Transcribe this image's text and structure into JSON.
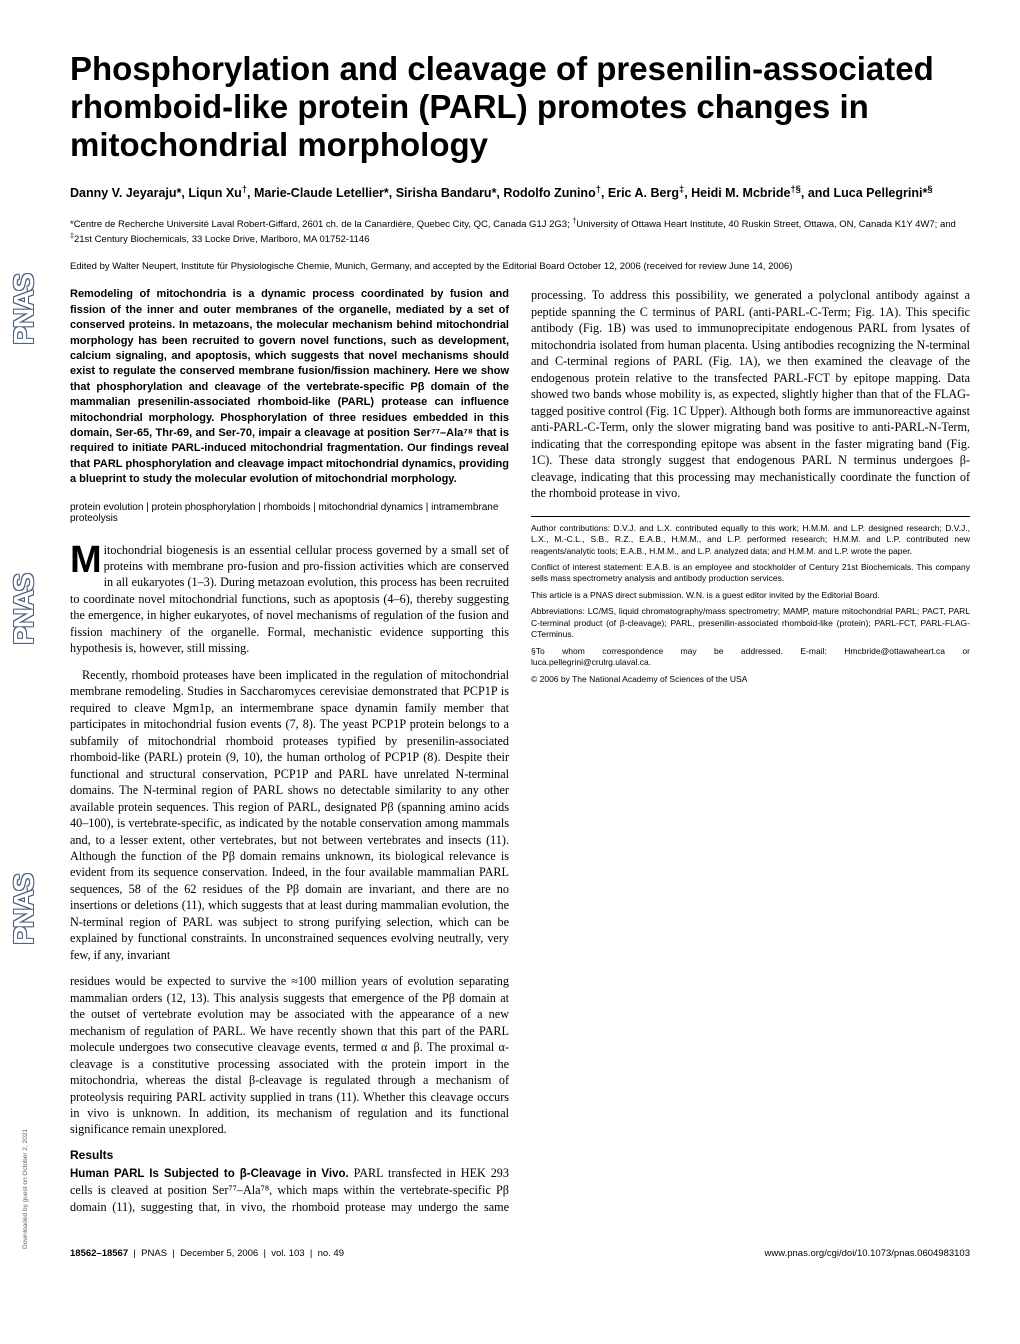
{
  "sidebar": {
    "logo": "PNAS"
  },
  "download_note": "Downloaded by guest on October 2, 2021",
  "title": "Phosphorylation and cleavage of presenilin-associated rhomboid-like protein (PARL) promotes changes in mitochondrial morphology",
  "authors_html": "Danny V. Jeyaraju*, Liqun Xu<sup>†</sup>, Marie-Claude Letellier*, Sirisha Bandaru*, Rodolfo Zunino<sup>†</sup>, Eric A. Berg<sup>‡</sup>, Heidi M. Mcbride<sup>†§</sup>, and Luca Pellegrini*<sup>§</sup>",
  "affiliations_html": "*Centre de Recherche Université Laval Robert-Giffard, 2601 ch. de la Canardière, Quebec City, QC, Canada G1J 2G3; <sup>†</sup>University of Ottawa Heart Institute, 40 Ruskin Street, Ottawa, ON, Canada K1Y 4W7; and <sup>‡</sup>21st Century Biochemicals, 33 Locke Drive, Marlboro, MA 01752-1146",
  "edited": "Edited by Walter Neupert, Institute für Physiologische Chemie, Munich, Germany, and accepted by the Editorial Board October 12, 2006 (received for review June 14, 2006)",
  "abstract": "Remodeling of mitochondria is a dynamic process coordinated by fusion and fission of the inner and outer membranes of the organelle, mediated by a set of conserved proteins. In metazoans, the molecular mechanism behind mitochondrial morphology has been recruited to govern novel functions, such as development, calcium signaling, and apoptosis, which suggests that novel mechanisms should exist to regulate the conserved membrane fusion/fission machinery. Here we show that phosphorylation and cleavage of the vertebrate-specific Pβ domain of the mammalian presenilin-associated rhomboid-like (PARL) protease can influence mitochondrial morphology. Phosphorylation of three residues embedded in this domain, Ser-65, Thr-69, and Ser-70, impair a cleavage at position Ser⁷⁷–Ala⁷⁸ that is required to initiate PARL-induced mitochondrial fragmentation. Our findings reveal that PARL phosphorylation and cleavage impact mitochondrial dynamics, providing a blueprint to study the molecular evolution of mitochondrial morphology.",
  "keywords": "protein evolution | protein phosphorylation | rhomboids | mitochondrial dynamics | intramembrane proteolysis",
  "body": {
    "p1_dropcap": "M",
    "p1": "itochondrial biogenesis is an essential cellular process governed by a small set of proteins with membrane pro-fusion and pro-fission activities which are conserved in all eukaryotes (1–3). During metazoan evolution, this process has been recruited to coordinate novel mitochondrial functions, such as apoptosis (4–6), thereby suggesting the emergence, in higher eukaryotes, of novel mechanisms of regulation of the fusion and fission machinery of the organelle. Formal, mechanistic evidence supporting this hypothesis is, however, still missing.",
    "p2": "Recently, rhomboid proteases have been implicated in the regulation of mitochondrial membrane remodeling. Studies in Saccharomyces cerevisiae demonstrated that PCP1P is required to cleave Mgm1p, an intermembrane space dynamin family member that participates in mitochondrial fusion events (7, 8). The yeast PCP1P protein belongs to a subfamily of mitochondrial rhomboid proteases typified by presenilin-associated rhomboid-like (PARL) protein (9, 10), the human ortholog of PCP1P (8). Despite their functional and structural conservation, PCP1P and PARL have unrelated N-terminal domains. The N-terminal region of PARL shows no detectable similarity to any other available protein sequences. This region of PARL, designated Pβ (spanning amino acids 40–100), is vertebrate-specific, as indicated by the notable conservation among mammals and, to a lesser extent, other vertebrates, but not between vertebrates and insects (11). Although the function of the Pβ domain remains unknown, its biological relevance is evident from its sequence conservation. Indeed, in the four available mammalian PARL sequences, 58 of the 62 residues of the Pβ domain are invariant, and there are no insertions or deletions (11), which suggests that at least during mammalian evolution, the N-terminal region of PARL was subject to strong purifying selection, which can be explained by functional constraints. In unconstrained sequences evolving neutrally, very few, if any, invariant",
    "p3": "residues would be expected to survive the ≈100 million years of evolution separating mammalian orders (12, 13). This analysis suggests that emergence of the Pβ domain at the outset of vertebrate evolution may be associated with the appearance of a new mechanism of regulation of PARL. We have recently shown that this part of the PARL molecule undergoes two consecutive cleavage events, termed α and β. The proximal α-cleavage is a constitutive processing associated with the protein import in the mitochondria, whereas the distal β-cleavage is regulated through a mechanism of proteolysis requiring PARL activity supplied in trans (11). Whether this cleavage occurs in vivo is unknown. In addition, its mechanism of regulation and its functional significance remain unexplored.",
    "results_h": "Results",
    "sub1_label": "Human PARL Is Subjected to β-Cleavage in Vivo.",
    "sub1_body": " PARL transfected in HEK 293 cells is cleaved at position Ser⁷⁷–Ala⁷⁸, which maps within the vertebrate-specific Pβ domain (11), suggesting that, in vivo, the rhomboid protease may undergo the same processing. To address this possibility, we generated a polyclonal antibody against a peptide spanning the C terminus of PARL (anti-PARL-C-Term; Fig. 1A). This specific antibody (Fig. 1B) was used to immunoprecipitate endogenous PARL from lysates of mitochondria isolated from human placenta. Using antibodies recognizing the N-terminal and C-terminal regions of PARL (Fig. 1A), we then examined the cleavage of the endogenous protein relative to the transfected PARL-FCT by epitope mapping. Data showed two bands whose mobility is, as expected, slightly higher than that of the FLAG-tagged positive control (Fig. 1C Upper). Although both forms are immunoreactive against anti-PARL-C-Term, only the slower migrating band was positive to anti-PARL-N-Term, indicating that the corresponding epitope was absent in the faster migrating band (Fig. 1C). These data strongly suggest that endogenous PARL N terminus undergoes β-cleavage, indicating that this processing may mechanistically coordinate the function of the rhomboid protease in vivo."
  },
  "footnotes": {
    "f1": "Author contributions: D.V.J. and L.X. contributed equally to this work; H.M.M. and L.P. designed research; D.V.J., L.X., M.-C.L., S.B., R.Z., E.A.B., H.M.M., and L.P. performed research; H.M.M. and L.P. contributed new reagents/analytic tools; E.A.B., H.M.M., and L.P. analyzed data; and H.M.M. and L.P. wrote the paper.",
    "f2": "Conflict of interest statement: E.A.B. is an employee and stockholder of Century 21st Biochemicals. This company sells mass spectrometry analysis and antibody production services.",
    "f3": "This article is a PNAS direct submission. W.N. is a guest editor invited by the Editorial Board.",
    "f4": "Abbreviations: LC/MS, liquid chromatography/mass spectrometry; MAMP, mature mitochondrial PARL; PACT, PARL C-terminal product (of β-cleavage); PARL, presenilin-associated rhomboid-like (protein); PARL-FCT, PARL-FLAG-CTerminus.",
    "f5": "§To whom correspondence may be addressed. E-mail: Hmcbride@ottawaheart.ca or luca.pellegrini@crulrg.ulaval.ca.",
    "f6": "© 2006 by The National Academy of Sciences of the USA"
  },
  "footer": {
    "pages": "18562–18567",
    "journal": "PNAS",
    "date": "December 5, 2006",
    "vol": "vol. 103",
    "issue": "no. 49",
    "url": "www.pnas.org/cgi/doi/10.1073/pnas.0604983103"
  },
  "colors": {
    "text": "#000000",
    "bg": "#ffffff",
    "sidebar_stroke": "#4a5f7a",
    "note_gray": "#666666"
  }
}
